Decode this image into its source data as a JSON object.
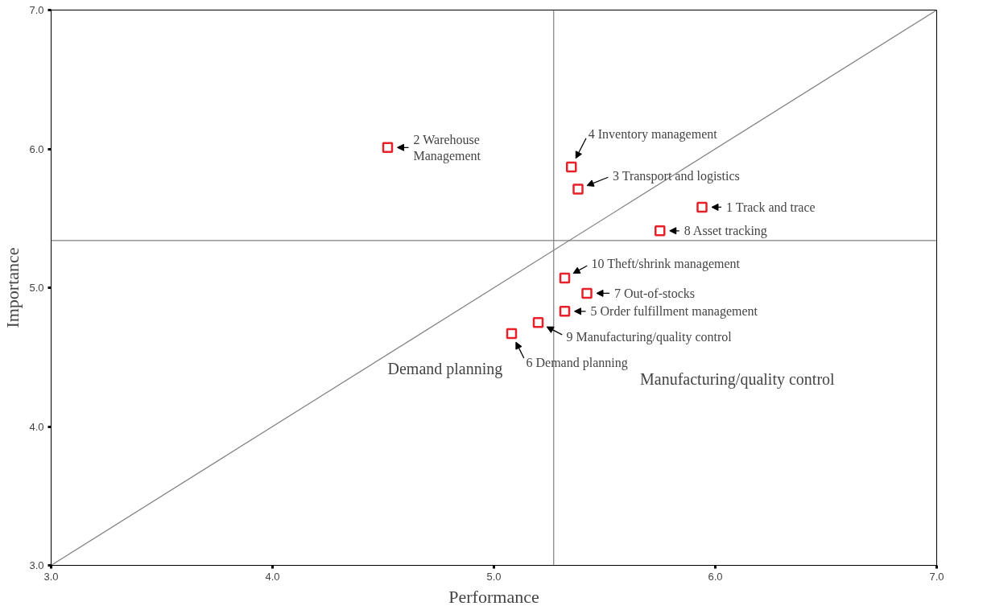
{
  "chart_data": {
    "type": "scatter",
    "xlabel": "Performance",
    "ylabel": "Importance",
    "xlim": [
      3,
      7
    ],
    "ylim": [
      3,
      7
    ],
    "xticks": [
      {
        "value": 3,
        "label": "3.0"
      },
      {
        "value": 4,
        "label": "4.0"
      },
      {
        "value": 5,
        "label": "5.0"
      },
      {
        "value": 6,
        "label": "6.0"
      },
      {
        "value": 7,
        "label": "7.0"
      }
    ],
    "yticks": [
      {
        "value": 3,
        "label": "3.0"
      },
      {
        "value": 4,
        "label": "4.0"
      },
      {
        "value": 5,
        "label": "5.0"
      },
      {
        "value": 6,
        "label": "6.0"
      },
      {
        "value": 7,
        "label": "7.0"
      }
    ],
    "grid": false,
    "marker": "square",
    "series": [
      {
        "color": "#e8202a",
        "x": [
          5.94,
          4.52,
          5.38,
          5.35,
          5.32,
          5.08,
          5.42,
          5.75,
          5.2,
          5.32
        ],
        "values": [
          5.58,
          6.01,
          5.71,
          5.87,
          4.83,
          4.67,
          4.96,
          5.41,
          4.75,
          5.07
        ]
      },
      {
        "type": "line",
        "color": "#7f7f7f",
        "line_style": "solid",
        "marker": "none",
        "x": [
          3,
          7
        ],
        "values": [
          3,
          7
        ]
      }
    ],
    "ref_lines": [
      {
        "axis": "x",
        "value": 5.27,
        "label": null,
        "color": "#7f7f7f"
      },
      {
        "axis": "y",
        "value": 5.34,
        "label": null,
        "color": "#7f7f7f"
      }
    ],
    "annotations": [
      {
        "text": "1 Track and trace",
        "x": 5.94,
        "y": 5.58
      },
      {
        "text": "2 Warehouse\nManagement",
        "x": 4.52,
        "y": 6.01
      },
      {
        "text": "3 Transport and logistics",
        "x": 5.38,
        "y": 5.71
      },
      {
        "text": "4 Inventory management",
        "x": 5.35,
        "y": 5.87
      },
      {
        "text": "5 Order fulfillment management",
        "x": 5.32,
        "y": 4.83
      },
      {
        "text": "6 Demand planning",
        "x": 5.08,
        "y": 4.67
      },
      {
        "text": "7 Out-of-stocks",
        "x": 5.42,
        "y": 4.96
      },
      {
        "text": "8 Asset tracking",
        "x": 5.75,
        "y": 5.41
      },
      {
        "text": "9 Manufacturing/quality control",
        "x": 5.2,
        "y": 4.75
      },
      {
        "text": "10 Theft/shrink management",
        "x": 5.32,
        "y": 5.07
      },
      "Demand planning",
      "Manufacturing/quality control"
    ]
  }
}
